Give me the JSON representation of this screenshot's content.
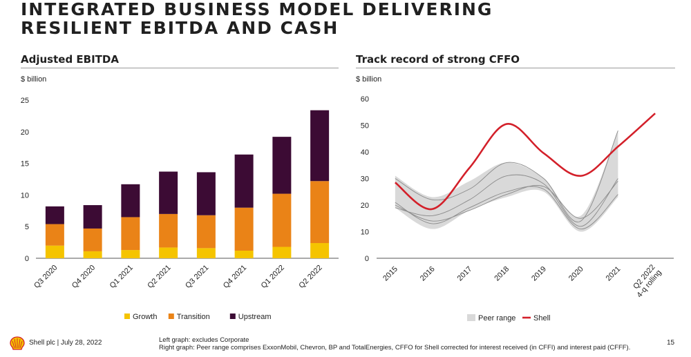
{
  "header": {
    "title": "INTEGRATED BUSINESS MODEL DELIVERING RESILIENT EBITDA AND CASH"
  },
  "left_panel": {
    "title": "Adjusted EBITDA",
    "unit": "$ billion"
  },
  "right_panel": {
    "title": "Track record of strong CFFO",
    "unit": "$ billion"
  },
  "footer": {
    "company": "Shell plc | July 28, 2022",
    "note_left": "Left graph: excludes Corporate",
    "note_right": "Right graph: Peer range comprises ExxonMobil, Chevron, BP and TotalEnergies, CFFO for Shell corrected for interest received (in CFFI) and interest paid (CFFF).",
    "page_number": "15"
  },
  "colors": {
    "growth": "#f5c400",
    "transition": "#ea8317",
    "upstream": "#3c0b34",
    "shell_line": "#d3202a",
    "peer_fill": "#d9d9d9",
    "peer_line": "#8a8a8a"
  },
  "chart_data": [
    {
      "type": "bar",
      "stacked": true,
      "title": "Adjusted EBITDA",
      "ylabel": "$ billion",
      "ylim": [
        0,
        25
      ],
      "yticks": [
        "0",
        "5",
        "10",
        "15",
        "20",
        "25"
      ],
      "categories": [
        "Q3 2020",
        "Q4 2020",
        "Q1 2021",
        "Q2 2021",
        "Q3 2021",
        "Q4 2021",
        "Q1 2022",
        "Q2 2022"
      ],
      "series": [
        {
          "name": "Growth",
          "values": [
            2.0,
            1.1,
            1.3,
            1.7,
            1.6,
            1.2,
            1.8,
            2.4
          ]
        },
        {
          "name": "Transition",
          "values": [
            3.4,
            3.6,
            5.2,
            5.3,
            5.2,
            6.8,
            8.4,
            9.8
          ]
        },
        {
          "name": "Upstream",
          "values": [
            2.8,
            3.7,
            5.2,
            6.7,
            6.8,
            8.4,
            9.0,
            11.2
          ]
        }
      ],
      "legend": "bottom"
    },
    {
      "type": "line",
      "title": "Track record of strong CFFO",
      "ylabel": "$ billion",
      "ylim": [
        0,
        60
      ],
      "yticks": [
        "0",
        "10",
        "20",
        "30",
        "40",
        "50",
        "60"
      ],
      "x": [
        "2015",
        "2016",
        "2017",
        "2018",
        "2019",
        "2020",
        "2021",
        "Q2 2022 4-q rolling"
      ],
      "series": [
        {
          "name": "Shell",
          "values": [
            28.5,
            18.5,
            34,
            50.5,
            39.5,
            31,
            42,
            54.5
          ]
        },
        {
          "name": "Peer range",
          "upper": [
            31,
            23,
            29,
            36,
            30,
            16,
            48,
            null
          ],
          "lower": [
            19,
            11,
            18,
            23,
            25,
            10,
            23,
            null
          ]
        }
      ],
      "peer_lines": [
        [
          30,
          22,
          26,
          36,
          30,
          14,
          48
        ],
        [
          19,
          16,
          22,
          31,
          28,
          12,
          30
        ],
        [
          21,
          13,
          19,
          25,
          26,
          11,
          24
        ],
        [
          20,
          14,
          18,
          24,
          27,
          15,
          29
        ]
      ],
      "legend": "bottom"
    }
  ]
}
